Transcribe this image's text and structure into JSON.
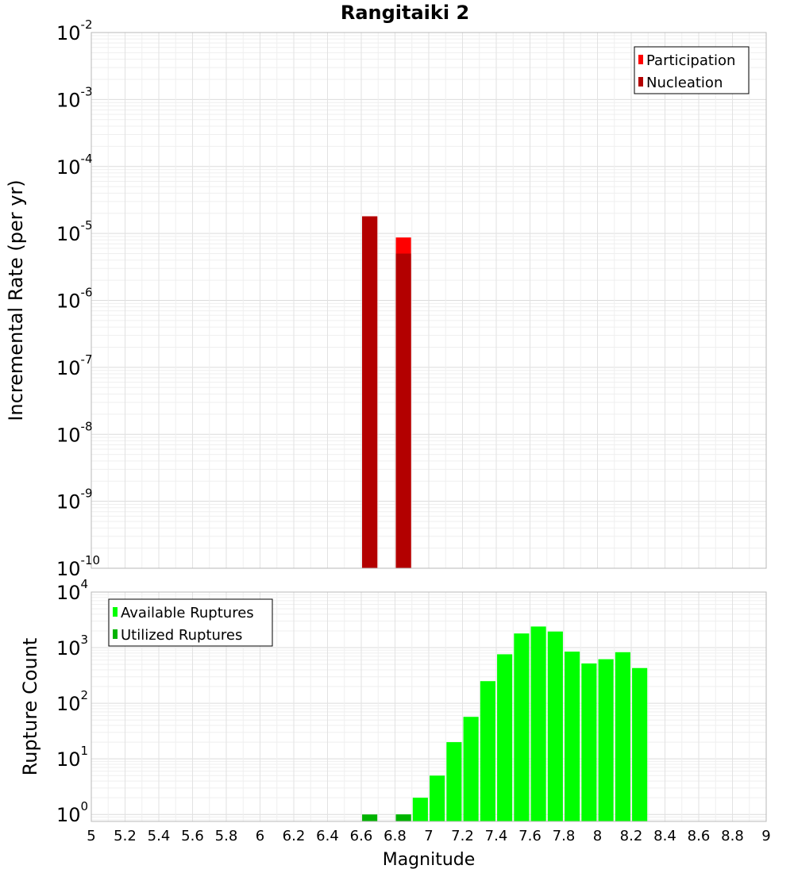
{
  "chart_data": [
    {
      "type": "bar",
      "title": "Rangitaiki 2",
      "ylabel": "Incremental Rate (per yr)",
      "xlabel": "",
      "xlim": [
        5,
        9
      ],
      "ylim": [
        1e-10,
        0.01
      ],
      "yscale": "log",
      "grid": true,
      "bar_width": 0.09,
      "y_ticks": [
        {
          "base": "10",
          "exp": "-10",
          "value": 1e-10
        },
        {
          "base": "10",
          "exp": "-9",
          "value": 1e-09
        },
        {
          "base": "10",
          "exp": "-8",
          "value": 1e-08
        },
        {
          "base": "10",
          "exp": "-7",
          "value": 1e-07
        },
        {
          "base": "10",
          "exp": "-6",
          "value": 1e-06
        },
        {
          "base": "10",
          "exp": "-5",
          "value": 1e-05
        },
        {
          "base": "10",
          "exp": "-4",
          "value": 0.0001
        },
        {
          "base": "10",
          "exp": "-3",
          "value": 0.001
        },
        {
          "base": "10",
          "exp": "-2",
          "value": 0.01
        }
      ],
      "legend": {
        "placement": "top-right",
        "entries": [
          "Participation",
          "Nucleation"
        ]
      },
      "series": [
        {
          "name": "Participation",
          "color": "#ff0000",
          "x": [
            6.65,
            6.85
          ],
          "values": [
            1.8e-05,
            8.7e-06
          ]
        },
        {
          "name": "Nucleation",
          "color": "#b30000",
          "x": [
            6.65,
            6.85
          ],
          "values": [
            1.8e-05,
            5e-06
          ]
        }
      ]
    },
    {
      "type": "bar",
      "title": "",
      "ylabel": "Rupture Count",
      "xlabel": "Magnitude",
      "xlim": [
        5,
        9
      ],
      "ylim": [
        0.75,
        10000
      ],
      "yscale": "log",
      "grid": true,
      "bar_width": 0.09,
      "x_ticks": [
        "5",
        "5.2",
        "5.4",
        "5.6",
        "5.8",
        "6",
        "6.2",
        "6.4",
        "6.6",
        "6.8",
        "7",
        "7.2",
        "7.4",
        "7.6",
        "7.8",
        "8",
        "8.2",
        "8.4",
        "8.6",
        "8.8",
        "9"
      ],
      "y_ticks": [
        {
          "base": "10",
          "exp": "0",
          "value": 1
        },
        {
          "base": "10",
          "exp": "1",
          "value": 10
        },
        {
          "base": "10",
          "exp": "2",
          "value": 100
        },
        {
          "base": "10",
          "exp": "3",
          "value": 1000
        },
        {
          "base": "10",
          "exp": "4",
          "value": 10000
        }
      ],
      "legend": {
        "placement": "top-left",
        "entries": [
          "Available Ruptures",
          "Utilized Ruptures"
        ]
      },
      "series": [
        {
          "name": "Available Ruptures",
          "color": "#00ff00",
          "x": [
            6.85,
            6.95,
            7.05,
            7.15,
            7.25,
            7.35,
            7.45,
            7.55,
            7.65,
            7.75,
            7.85,
            7.95,
            8.05,
            8.15,
            8.25
          ],
          "values": [
            1,
            2,
            5,
            20,
            57,
            250,
            760,
            1800,
            2400,
            1950,
            850,
            520,
            620,
            830,
            430
          ]
        },
        {
          "name": "Utilized Ruptures",
          "color": "#00b300",
          "x": [
            6.65,
            6.85
          ],
          "values": [
            1,
            1
          ]
        }
      ]
    }
  ]
}
